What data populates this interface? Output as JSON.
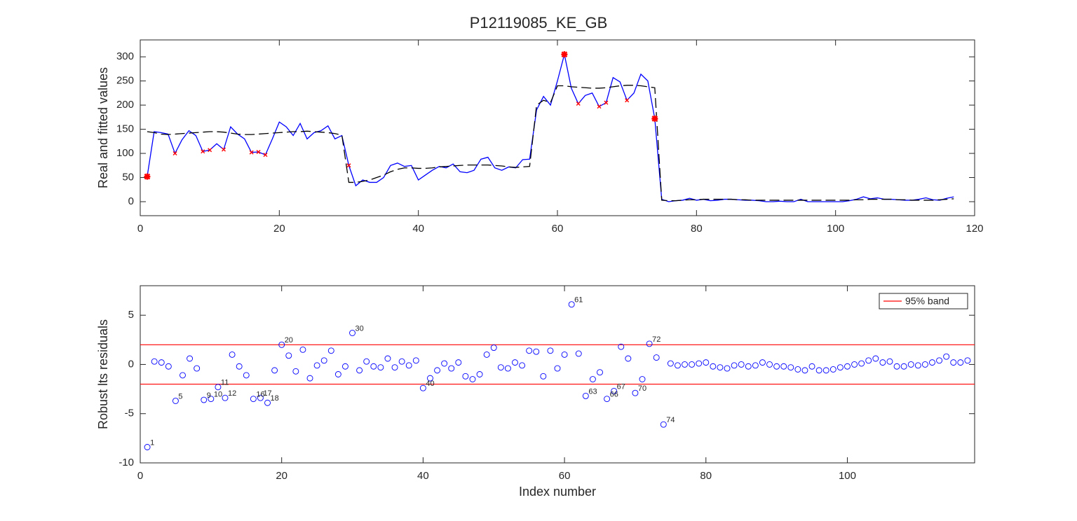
{
  "chart_data": [
    {
      "type": "line",
      "title": "P12119085_KE_GB",
      "ylabel": "Real and fitted values",
      "x": [
        1,
        2,
        3,
        4,
        5,
        6,
        7,
        8,
        9,
        10,
        11,
        12,
        13,
        14,
        15,
        16,
        17,
        18,
        19,
        20,
        21,
        22,
        23,
        24,
        25,
        26,
        27,
        28,
        29,
        30,
        31,
        32,
        33,
        34,
        35,
        36,
        37,
        38,
        39,
        40,
        41,
        42,
        43,
        44,
        45,
        46,
        47,
        48,
        49,
        50,
        51,
        52,
        53,
        54,
        55,
        56,
        57,
        58,
        59,
        60,
        61,
        62,
        63,
        64,
        65,
        66,
        67,
        68,
        69,
        70,
        71,
        72,
        73,
        74,
        75,
        76,
        77,
        78,
        79,
        80,
        81,
        82,
        83,
        84,
        85,
        86,
        87,
        88,
        89,
        90,
        91,
        92,
        93,
        94,
        95,
        96,
        97,
        98,
        99,
        100,
        101,
        102,
        103,
        104,
        105,
        106,
        107,
        108,
        109,
        110,
        111,
        112,
        113,
        114,
        115,
        116,
        117
      ],
      "xlim": [
        0,
        120
      ],
      "xticks": [
        0,
        20,
        40,
        60,
        80,
        100,
        120
      ],
      "ylim": [
        -29,
        335
      ],
      "yticks": [
        0,
        50,
        100,
        150,
        200,
        250,
        300
      ],
      "series": [
        {
          "color": "#0000ff",
          "style": "solid",
          "values": [
            52,
            145,
            143,
            140,
            100,
            128,
            147,
            137,
            104,
            107,
            120,
            108,
            155,
            140,
            130,
            102,
            103,
            97,
            130,
            165,
            155,
            137,
            162,
            130,
            143,
            147,
            157,
            130,
            137,
            75,
            33,
            45,
            40,
            40,
            50,
            75,
            80,
            73,
            75,
            45,
            55,
            65,
            73,
            70,
            78,
            62,
            60,
            65,
            88,
            92,
            70,
            65,
            72,
            70,
            87,
            88,
            190,
            218,
            200,
            250,
            305,
            235,
            203,
            220,
            225,
            197,
            205,
            257,
            248,
            210,
            225,
            264,
            250,
            172,
            5,
            0,
            2,
            3,
            7,
            3,
            5,
            2,
            3,
            5,
            5,
            4,
            3,
            3,
            2,
            0,
            0,
            1,
            0,
            0,
            5,
            0,
            0,
            0,
            0,
            0,
            0,
            2,
            5,
            10,
            6,
            8,
            5,
            5,
            4,
            3,
            3,
            5,
            8,
            4,
            3,
            7,
            10
          ]
        },
        {
          "color": "#000000",
          "style": "dashed",
          "values": [
            145,
            143,
            140,
            139,
            140,
            141,
            142,
            143,
            144,
            145,
            145,
            144,
            142,
            140,
            139,
            139,
            140,
            141,
            142,
            143,
            144,
            145,
            145,
            146,
            145,
            144,
            143,
            141,
            138,
            40,
            40,
            42,
            45,
            50,
            55,
            62,
            67,
            70,
            70,
            69,
            69,
            70,
            72,
            73,
            74,
            75,
            76,
            76,
            76,
            76,
            75,
            74,
            72,
            71,
            72,
            73,
            200,
            210,
            205,
            240,
            240,
            238,
            237,
            236,
            235,
            235,
            236,
            238,
            240,
            241,
            241,
            240,
            238,
            236,
            3,
            2,
            2,
            3,
            4,
            4,
            5,
            5,
            5,
            5,
            5,
            4,
            4,
            3,
            3,
            3,
            3,
            3,
            3,
            3,
            3,
            3,
            3,
            3,
            3,
            3,
            3,
            3,
            4,
            4,
            5,
            5,
            5,
            5,
            4,
            4,
            3,
            3,
            3,
            3,
            4,
            5,
            6
          ]
        },
        {
          "color": "#ff0000",
          "style": "x",
          "values": [
            null,
            null,
            null,
            null,
            100,
            null,
            null,
            null,
            104,
            107,
            null,
            108,
            null,
            null,
            null,
            102,
            103,
            97,
            null,
            null,
            null,
            null,
            null,
            null,
            null,
            null,
            null,
            null,
            null,
            75,
            null,
            null,
            null,
            null,
            null,
            null,
            null,
            null,
            null,
            null,
            null,
            null,
            null,
            null,
            null,
            null,
            null,
            null,
            null,
            null,
            null,
            null,
            null,
            null,
            null,
            null,
            null,
            null,
            null,
            null,
            null,
            null,
            203,
            null,
            null,
            197,
            205,
            null,
            null,
            210,
            null,
            null,
            null,
            null,
            null,
            null,
            null,
            null,
            null,
            null,
            null,
            null,
            null,
            null,
            null,
            null,
            null,
            null,
            null,
            null,
            null,
            null,
            null,
            null,
            null,
            null,
            null,
            null,
            null,
            null,
            null,
            null,
            null,
            null,
            null,
            null,
            null,
            null,
            null,
            null,
            null,
            null,
            null,
            null,
            null,
            null,
            null
          ]
        },
        {
          "color": "#ff0000",
          "style": "star",
          "values": [
            52,
            null,
            null,
            null,
            null,
            null,
            null,
            null,
            null,
            null,
            null,
            null,
            null,
            null,
            null,
            null,
            null,
            null,
            null,
            null,
            null,
            null,
            null,
            null,
            null,
            null,
            null,
            null,
            null,
            null,
            null,
            null,
            null,
            null,
            null,
            null,
            null,
            null,
            null,
            null,
            null,
            null,
            null,
            null,
            null,
            null,
            null,
            null,
            null,
            null,
            null,
            null,
            null,
            null,
            null,
            null,
            null,
            null,
            null,
            null,
            305,
            null,
            null,
            null,
            null,
            null,
            null,
            null,
            null,
            null,
            null,
            null,
            null,
            172,
            null,
            null,
            null,
            null,
            null,
            null,
            null,
            null,
            null,
            null,
            null,
            null,
            null,
            null,
            null,
            null,
            null,
            null,
            null,
            null,
            null,
            null,
            null,
            null,
            null,
            null,
            null,
            null,
            null,
            null,
            null,
            null,
            null,
            null,
            null,
            null,
            null,
            null,
            null,
            null,
            null,
            null,
            null
          ]
        }
      ]
    },
    {
      "type": "scatter",
      "xlabel": "Index number",
      "ylabel": "Robust lts residuals",
      "x": [
        1,
        2,
        3,
        4,
        5,
        6,
        7,
        8,
        9,
        10,
        11,
        12,
        13,
        14,
        15,
        16,
        17,
        18,
        19,
        20,
        21,
        22,
        23,
        24,
        25,
        26,
        27,
        28,
        29,
        30,
        31,
        32,
        33,
        34,
        35,
        36,
        37,
        38,
        39,
        40,
        41,
        42,
        43,
        44,
        45,
        46,
        47,
        48,
        49,
        50,
        51,
        52,
        53,
        54,
        55,
        56,
        57,
        58,
        59,
        60,
        61,
        62,
        63,
        64,
        65,
        66,
        67,
        68,
        69,
        70,
        71,
        72,
        73,
        74,
        75,
        76,
        77,
        78,
        79,
        80,
        81,
        82,
        83,
        84,
        85,
        86,
        87,
        88,
        89,
        90,
        91,
        92,
        93,
        94,
        95,
        96,
        97,
        98,
        99,
        100,
        101,
        102,
        103,
        104,
        105,
        106,
        107,
        108,
        109,
        110,
        111,
        112,
        113,
        114,
        115,
        116,
        117
      ],
      "values": [
        -8.4,
        0.3,
        0.2,
        -0.2,
        -3.7,
        -1.1,
        0.6,
        -0.4,
        -3.6,
        -3.5,
        -2.3,
        -3.4,
        1.0,
        -0.2,
        -1.1,
        -3.5,
        -3.4,
        -3.9,
        -0.6,
        2.0,
        0.9,
        -0.7,
        1.5,
        -1.4,
        -0.1,
        0.4,
        1.4,
        -1.0,
        -0.2,
        3.2,
        -0.6,
        0.3,
        -0.2,
        -0.3,
        0.6,
        -0.3,
        0.3,
        -0.1,
        0.4,
        -2.4,
        -1.4,
        -0.6,
        0.1,
        -0.4,
        0.2,
        -1.2,
        -1.5,
        -1.0,
        1.0,
        1.7,
        -0.3,
        -0.4,
        0.2,
        -0.1,
        1.4,
        1.3,
        -1.2,
        1.4,
        -0.4,
        1.0,
        6.1,
        1.1,
        -3.2,
        -1.5,
        -0.8,
        -3.5,
        -2.7,
        1.8,
        0.6,
        -2.9,
        -1.5,
        2.1,
        0.7,
        -6.1,
        0.1,
        -0.1,
        0.0,
        0.0,
        0.1,
        0.2,
        -0.2,
        -0.3,
        -0.4,
        -0.1,
        0.0,
        -0.2,
        -0.1,
        0.2,
        0.0,
        -0.2,
        -0.2,
        -0.3,
        -0.5,
        -0.6,
        -0.2,
        -0.6,
        -0.6,
        -0.5,
        -0.3,
        -0.2,
        0.0,
        0.1,
        0.4,
        0.6,
        0.2,
        0.3,
        -0.2,
        -0.2,
        0.0,
        -0.1,
        0.0,
        0.2,
        0.4,
        0.8,
        0.2,
        0.2,
        0.4
      ],
      "color": "#0000ff",
      "labeled": [
        1,
        5,
        9,
        10,
        11,
        12,
        16,
        17,
        18,
        20,
        30,
        40,
        61,
        63,
        66,
        67,
        70,
        72,
        74
      ],
      "band": {
        "name": "95% band",
        "color": "#ff0000",
        "values": [
          -2,
          2
        ]
      },
      "legend": "northeast",
      "xlim": [
        0,
        118
      ],
      "xticks": [
        0,
        20,
        40,
        60,
        80,
        100
      ],
      "ylim": [
        -10,
        8
      ],
      "yticks": [
        -10,
        -5,
        0,
        5
      ]
    }
  ]
}
